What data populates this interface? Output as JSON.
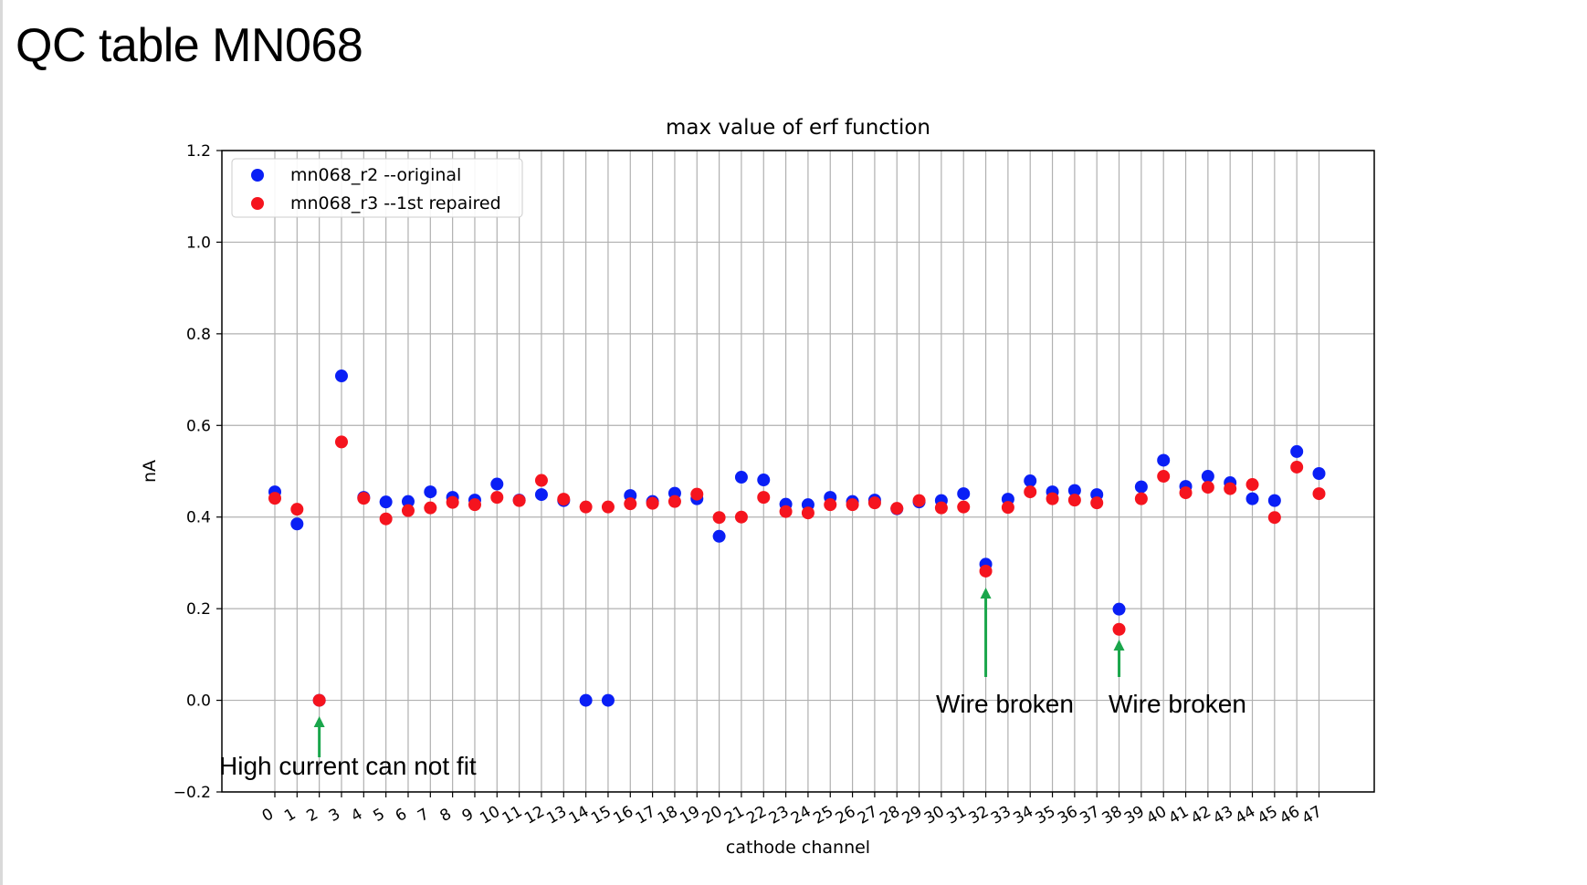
{
  "slide": {
    "title": "QC table MN068"
  },
  "colors": {
    "series_1": "#0a1ff5",
    "series_2": "#f5141e",
    "arrow": "#1aa64b",
    "grid": "#b0b0b0"
  },
  "chart_data": {
    "type": "scatter",
    "title": "max value of erf function",
    "xlabel": "cathode channel",
    "ylabel": "nA",
    "ylim": [
      -0.2,
      1.2
    ],
    "yticks": [
      -0.2,
      0.0,
      0.2,
      0.4,
      0.6,
      0.8,
      1.0,
      1.2
    ],
    "ytick_labels": [
      "−0.2",
      "0.0",
      "0.2",
      "0.4",
      "0.6",
      "0.8",
      "1.0",
      "1.2"
    ],
    "x": [
      0,
      1,
      2,
      3,
      4,
      5,
      6,
      7,
      8,
      9,
      10,
      11,
      12,
      13,
      14,
      15,
      16,
      17,
      18,
      19,
      20,
      21,
      22,
      23,
      24,
      25,
      26,
      27,
      28,
      29,
      30,
      31,
      32,
      33,
      34,
      35,
      36,
      37,
      38,
      39,
      40,
      41,
      42,
      43,
      44,
      45,
      46,
      47
    ],
    "xtick_labels": [
      "0",
      "1",
      "2",
      "3",
      "4",
      "5",
      "6",
      "7",
      "8",
      "9",
      "10",
      "11",
      "12",
      "13",
      "14",
      "15",
      "16",
      "17",
      "18",
      "19",
      "20",
      "21",
      "22",
      "23",
      "24",
      "25",
      "26",
      "27",
      "28",
      "29",
      "30",
      "31",
      "32",
      "33",
      "34",
      "35",
      "36",
      "37",
      "38",
      "39",
      "40",
      "41",
      "42",
      "43",
      "44",
      "45",
      "46",
      "47"
    ],
    "grid": true,
    "legend_position": "top-left",
    "series": [
      {
        "name": "mn068_r2 --original",
        "color": "#0a1ff5",
        "values": [
          0.455,
          0.385,
          0.0,
          0.708,
          0.443,
          0.433,
          0.434,
          0.455,
          0.443,
          0.437,
          0.472,
          0.437,
          0.449,
          0.436,
          0.0,
          0.0,
          0.447,
          0.434,
          0.452,
          0.44,
          0.358,
          0.487,
          0.481,
          0.428,
          0.427,
          0.443,
          0.434,
          0.437,
          0.418,
          0.433,
          0.436,
          0.451,
          0.297,
          0.439,
          0.479,
          0.455,
          0.458,
          0.449,
          0.199,
          0.466,
          0.524,
          0.467,
          0.489,
          0.475,
          0.44,
          0.436,
          0.543,
          0.495
        ]
      },
      {
        "name": "mn068_r3 --1st repaired",
        "color": "#f5141e",
        "values": [
          0.441,
          0.417,
          0.0,
          0.564,
          0.441,
          0.396,
          0.414,
          0.42,
          0.432,
          0.427,
          0.443,
          0.436,
          0.48,
          0.439,
          0.422,
          0.422,
          0.429,
          0.43,
          0.434,
          0.45,
          0.399,
          0.4,
          0.443,
          0.412,
          0.409,
          0.427,
          0.427,
          0.431,
          0.419,
          0.436,
          0.42,
          0.422,
          0.282,
          0.421,
          0.455,
          0.44,
          0.437,
          0.431,
          0.155,
          0.44,
          0.489,
          0.453,
          0.465,
          0.462,
          0.471,
          0.399,
          0.509,
          0.451
        ]
      }
    ],
    "annotations": [
      {
        "id": "high-current",
        "text": "High current can not fit",
        "x": 2
      },
      {
        "id": "wire-broken-32",
        "text": "Wire broken",
        "x": 32
      },
      {
        "id": "wire-broken-38",
        "text": "Wire broken",
        "x": 38
      }
    ]
  }
}
